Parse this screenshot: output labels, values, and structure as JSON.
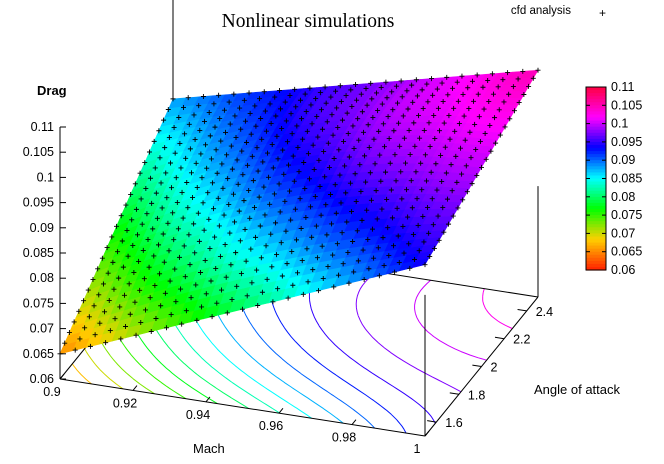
{
  "chart_data": {
    "type": "surface3d",
    "title": "Nonlinear simulations",
    "zlabel": "Drag",
    "xlabel": "Mach",
    "ylabel": "Angle of attack",
    "legend": {
      "label": "cfd analysis",
      "marker": "+",
      "position": "top-right"
    },
    "x_ticks": [
      "0.9",
      "0.92",
      "0.94",
      "0.96",
      "0.98",
      "1"
    ],
    "y_ticks": [
      "1.6",
      "1.8",
      "2",
      "2.2",
      "2.4"
    ],
    "z_ticks": [
      "0.06",
      "0.065",
      "0.07",
      "0.075",
      "0.08",
      "0.085",
      "0.09",
      "0.095",
      "0.1",
      "0.105",
      "0.11"
    ],
    "colorbox_ticks": [
      "0.06",
      "0.065",
      "0.07",
      "0.075",
      "0.08",
      "0.085",
      "0.09",
      "0.095",
      "0.1",
      "0.105",
      "0.11"
    ],
    "x_range": [
      0.9,
      1.0
    ],
    "y_range": [
      1.5,
      2.5
    ],
    "z_range": [
      0.06,
      0.11
    ],
    "palette": [
      "#ff2000",
      "#ffd000",
      "#00ff00",
      "#00ffff",
      "#0000ff",
      "#ff00ff",
      "#ff0040"
    ],
    "contour_base": true,
    "grid": false,
    "samples": [
      {
        "mach": 0.9,
        "aoa": 1.5,
        "drag": 0.065
      },
      {
        "mach": 0.9,
        "aoa": 2.5,
        "drag": 0.088
      },
      {
        "mach": 1.0,
        "aoa": 1.5,
        "drag": 0.094
      },
      {
        "mach": 1.0,
        "aoa": 2.5,
        "drag": 0.105
      },
      {
        "mach": 0.95,
        "aoa": 2.0,
        "drag": 0.093
      }
    ]
  }
}
